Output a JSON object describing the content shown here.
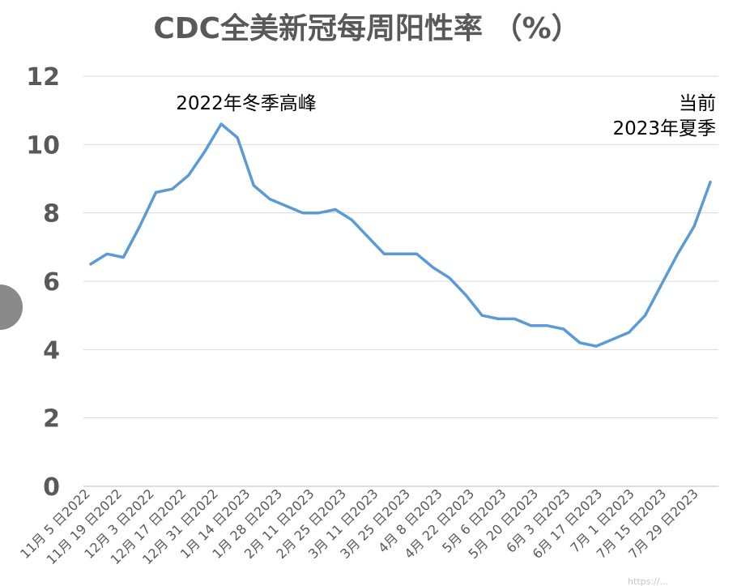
{
  "chart_data": {
    "type": "line",
    "title": "CDC全美新冠每周阳性率 （%）",
    "xlabel": "",
    "ylabel": "",
    "ylim": [
      0,
      12
    ],
    "yticks": [
      0,
      2,
      4,
      6,
      8,
      10,
      12
    ],
    "grid": true,
    "legend": "none",
    "x_tick_labels": [
      "11月 5 日2022",
      "11月 19 日2022",
      "12月 3 日2022",
      "12月 17 日2022",
      "12月 31 日2022",
      "1月 14 日2023",
      "1月 28 日2023",
      "2月 11 日2023",
      "2月 25 日2023",
      "3月 11 日2023",
      "3月 25 日2023",
      "4月 8 日2023",
      "4月 22 日2023",
      "5月 6 日2023",
      "5月 20 日2023",
      "6月 3 日2023",
      "6月 17 日2023",
      "7月 1 日2023",
      "7月 15 日2023",
      "7月 29 日2023"
    ],
    "series": [
      {
        "color": "#5b9bd5",
        "values": [
          6.5,
          6.8,
          6.7,
          7.6,
          8.6,
          8.7,
          9.1,
          9.8,
          10.6,
          10.2,
          8.8,
          8.4,
          8.2,
          8.0,
          8.0,
          8.1,
          7.8,
          7.3,
          6.8,
          6.8,
          6.8,
          6.4,
          6.1,
          5.6,
          5.0,
          4.9,
          4.9,
          4.7,
          4.7,
          4.6,
          4.2,
          4.1,
          4.3,
          4.5,
          5.0,
          5.9,
          6.8,
          7.6,
          8.9
        ]
      }
    ],
    "annotations": [
      {
        "id": "winter-peak",
        "lines": [
          "2022年冬季高峰"
        ]
      },
      {
        "id": "current",
        "lines": [
          "当前",
          "2023年夏季"
        ]
      }
    ],
    "watermark": "https://..."
  }
}
